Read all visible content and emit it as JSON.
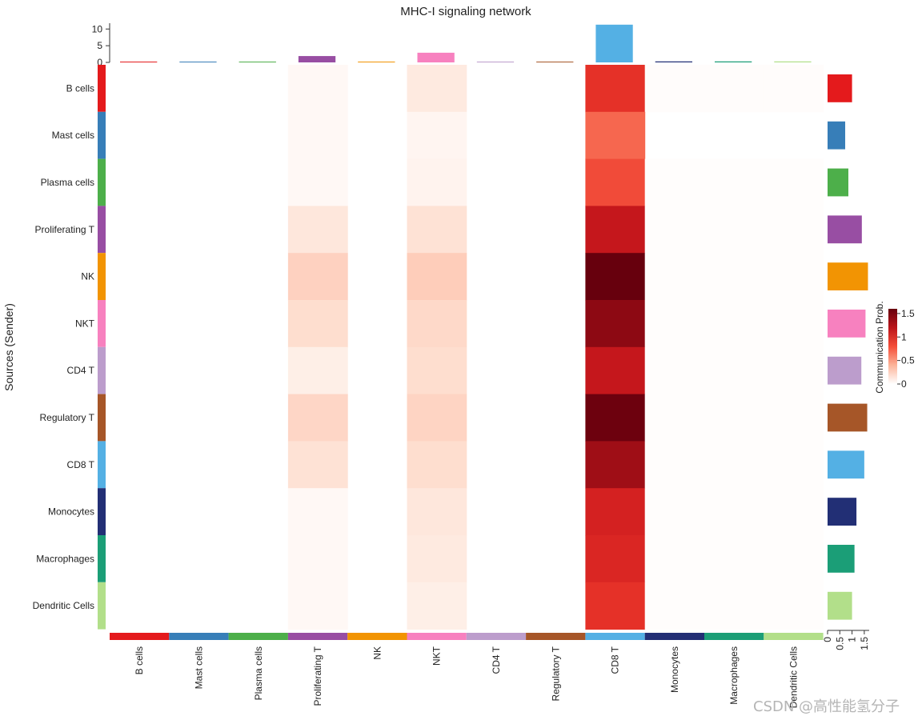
{
  "chart_data": {
    "type": "heatmap",
    "title": "MHC-I signaling network",
    "ylabel": "Sources (Sender)",
    "sources": [
      "B cells",
      "Mast cells",
      "Plasma cells",
      "Proliferating T",
      "NK",
      "NKT",
      "CD4 T",
      "Regulatory T",
      "CD8 T",
      "Monocytes",
      "Macrophages",
      "Dendritic Cells"
    ],
    "targets": [
      "B cells",
      "Mast cells",
      "Plasma cells",
      "Proliferating T",
      "NK",
      "NKT",
      "CD4 T",
      "Regulatory T",
      "CD8 T",
      "Monocytes",
      "Macrophages",
      "Dendritic Cells"
    ],
    "group_colors": [
      "#E41A1C",
      "#377EB8",
      "#4DAF4A",
      "#984EA3",
      "#F29403",
      "#F781BF",
      "#BC9DCC",
      "#A65628",
      "#54B0E4",
      "#222F75",
      "#1B9E77",
      "#B2DF8A"
    ],
    "values": [
      [
        0,
        0,
        0,
        0.07,
        0,
        0.22,
        0,
        0,
        1.05,
        0.03,
        0.03,
        0.03
      ],
      [
        0,
        0,
        0,
        0.07,
        0,
        0.1,
        0,
        0,
        0.8,
        0,
        0,
        0
      ],
      [
        0,
        0,
        0,
        0.07,
        0,
        0.12,
        0,
        0,
        0.9,
        0.02,
        0.02,
        0.02
      ],
      [
        0,
        0,
        0,
        0.25,
        0,
        0.3,
        0,
        0,
        1.3,
        0.02,
        0.02,
        0.02
      ],
      [
        0,
        0,
        0,
        0.38,
        0,
        0.4,
        0,
        0,
        1.6,
        0.02,
        0.02,
        0.02
      ],
      [
        0,
        0,
        0,
        0.33,
        0,
        0.35,
        0,
        0,
        1.48,
        0.02,
        0.02,
        0.02
      ],
      [
        0,
        0,
        0,
        0.17,
        0,
        0.33,
        0,
        0,
        1.3,
        0.02,
        0.02,
        0.02
      ],
      [
        0,
        0,
        0,
        0.36,
        0,
        0.37,
        0,
        0,
        1.58,
        0.02,
        0.02,
        0.02
      ],
      [
        0,
        0,
        0,
        0.3,
        0,
        0.33,
        0,
        0,
        1.42,
        0.02,
        0.02,
        0.02
      ],
      [
        0,
        0,
        0,
        0.07,
        0,
        0.25,
        0,
        0,
        1.2,
        0.02,
        0.02,
        0.02
      ],
      [
        0,
        0,
        0,
        0.07,
        0,
        0.22,
        0,
        0,
        1.15,
        0.02,
        0.02,
        0.02
      ],
      [
        0,
        0,
        0,
        0.07,
        0,
        0.17,
        0,
        0,
        1.05,
        0.02,
        0.02,
        0.02
      ]
    ],
    "top_bar": {
      "values": [
        0.15,
        0.1,
        0.1,
        1.9,
        0.1,
        2.9,
        0.08,
        0.1,
        11.3,
        0.3,
        0.3,
        0.3
      ],
      "ticks": [
        "0",
        "5",
        "10"
      ],
      "ylim": [
        0,
        11.5
      ]
    },
    "right_bar": {
      "values": [
        1.0,
        0.72,
        0.85,
        1.4,
        1.65,
        1.55,
        1.38,
        1.62,
        1.5,
        1.18,
        1.1,
        1.0
      ],
      "ticks": [
        "0",
        "0.5",
        "1",
        "1.5"
      ],
      "xlim": [
        0,
        1.7
      ]
    },
    "colorbar": {
      "title": "Communication Prob.",
      "ticks": [
        "0",
        "0.5",
        "1",
        "1.5"
      ],
      "range": [
        0,
        1.6
      ]
    }
  },
  "watermark": "CSDN @高性能氢分子"
}
